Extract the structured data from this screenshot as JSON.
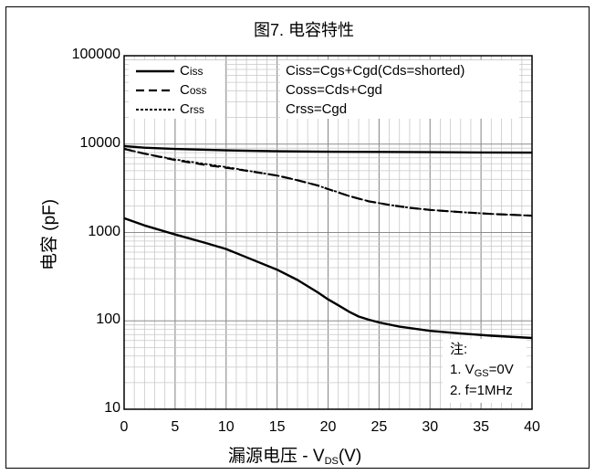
{
  "chart_data": {
    "type": "line",
    "title": "图7. 电容特性",
    "xlabel_prefix": "漏源电压 - V",
    "xlabel_sub": "DS",
    "xlabel_suffix": "(V)",
    "ylabel": "电容 (pF)",
    "xlim": [
      0,
      40
    ],
    "ylim": [
      10,
      100000
    ],
    "yscale": "log",
    "grid": true,
    "x_ticks": [
      "0",
      "5",
      "10",
      "15",
      "20",
      "25",
      "30",
      "35",
      "40"
    ],
    "y_ticks": [
      "10",
      "100",
      "1000",
      "10000",
      "100000"
    ],
    "legend_position": "top-left",
    "legend": [
      {
        "name": "Ciss",
        "sub": "iss",
        "style": "solid"
      },
      {
        "name": "Coss",
        "sub": "oss",
        "style": "dashed"
      },
      {
        "name": "Crss",
        "sub": "rss",
        "style": "dotted"
      }
    ],
    "annotations": [
      "Ciss=Cgs+Cgd(Cds=shorted)",
      "Coss=Cds+Cgd",
      "Crss=Cgd"
    ],
    "notes": {
      "heading": "注:",
      "n1_prefix": "1. V",
      "n1_sub": "GS",
      "n1_suffix": "=0V",
      "n2": "2. f=1MHz"
    },
    "series": [
      {
        "name": "Ciss",
        "style": "solid",
        "x": [
          0,
          2,
          5,
          10,
          15,
          20,
          25,
          30,
          35,
          40
        ],
        "values": [
          9500,
          9100,
          8800,
          8500,
          8300,
          8200,
          8150,
          8100,
          8050,
          8000
        ]
      },
      {
        "name": "Coss",
        "style": "dashed",
        "x": [
          0,
          2,
          5,
          8,
          10,
          13,
          15,
          17,
          19,
          20,
          22,
          24,
          26,
          28,
          30,
          33,
          36,
          40
        ],
        "values": [
          8800,
          7800,
          6600,
          5800,
          5400,
          4800,
          4400,
          3900,
          3400,
          3100,
          2600,
          2250,
          2050,
          1900,
          1800,
          1700,
          1620,
          1550
        ]
      },
      {
        "name": "Crss",
        "style": "dotted",
        "x": [
          0,
          1,
          2,
          5,
          10,
          15,
          17,
          19,
          20,
          21,
          22,
          24,
          26,
          28,
          30,
          33,
          36,
          40
        ],
        "values": [
          8900,
          8300,
          7800,
          6700,
          5500,
          4400,
          3900,
          3400,
          3100,
          2850,
          2600,
          2250,
          2050,
          1900,
          1800,
          1700,
          1620,
          1550
        ]
      },
      {
        "name": "Crss-lower",
        "style": "solid",
        "x": [
          0,
          2,
          5,
          8,
          10,
          13,
          15,
          17,
          19,
          20,
          21,
          22,
          23,
          24,
          25,
          27,
          30,
          33,
          36,
          40
        ],
        "values": [
          1450,
          1200,
          950,
          760,
          650,
          470,
          380,
          290,
          210,
          175,
          150,
          128,
          112,
          103,
          96,
          86,
          77,
          72,
          68,
          64
        ]
      }
    ]
  }
}
